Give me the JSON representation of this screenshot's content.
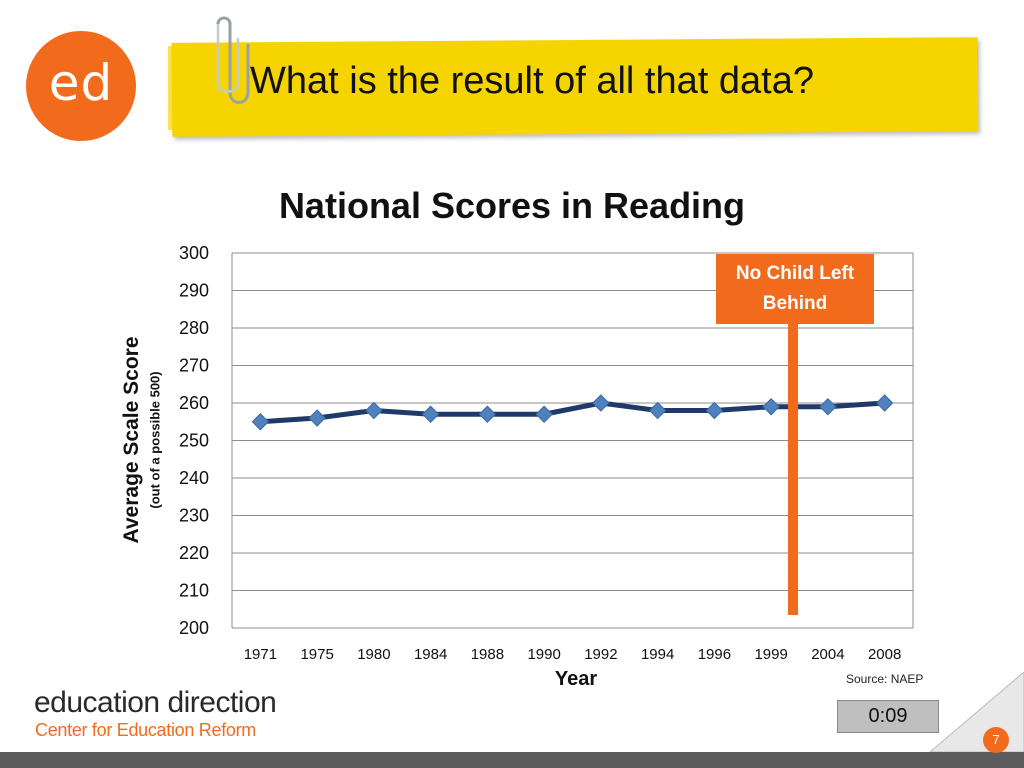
{
  "slide": {
    "logo_text": "ed",
    "title": "What is the result of all that data?",
    "brand": "education direction",
    "brand_sub": "Center for Education Reform",
    "timer": "0:09",
    "page_number": "7",
    "source": "Source: NAEP",
    "colors": {
      "accent": "#f26b1d",
      "banner": "#f5d400",
      "series": "#1f3a68",
      "marker": "#4f81bd"
    }
  },
  "chart_data": {
    "type": "line",
    "title": "National Scores in Reading",
    "xlabel": "Year",
    "ylabel": "Average Scale Score",
    "ylabel_sub": "(out of a possible 500)",
    "categories": [
      "1971",
      "1975",
      "1980",
      "1984",
      "1988",
      "1990",
      "1992",
      "1994",
      "1996",
      "1999",
      "2004",
      "2008"
    ],
    "series": [
      {
        "values": [
          255,
          256,
          258,
          257,
          257,
          257,
          260,
          258,
          258,
          259,
          259,
          260
        ]
      }
    ],
    "ylim": [
      200,
      300
    ],
    "yticks": [
      "200",
      "210",
      "220",
      "230",
      "240",
      "250",
      "260",
      "270",
      "280",
      "290",
      "300"
    ],
    "grid": true,
    "annotation": {
      "text_line1": "No Child Left",
      "text_line2": "Behind",
      "between": [
        "1999",
        "2004"
      ]
    }
  }
}
